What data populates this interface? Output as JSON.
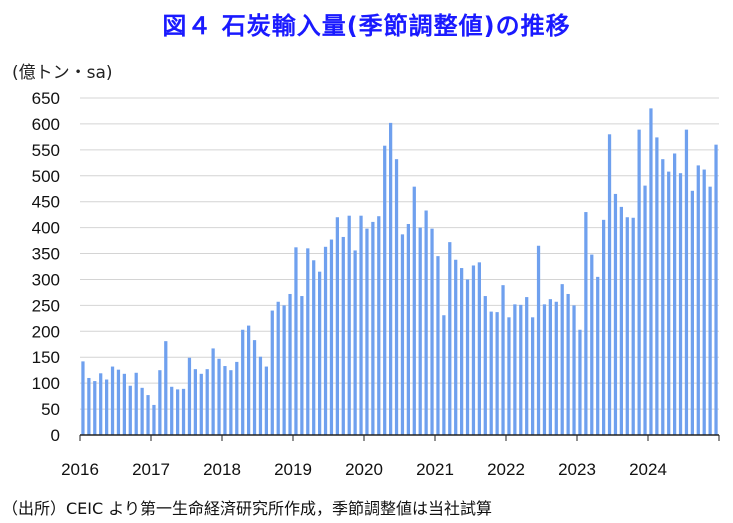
{
  "chart_data": {
    "type": "bar",
    "title": "図４ 石炭輸入量(季節調整値)の推移",
    "ylabel": "(億トン・sa)",
    "xlabel": "",
    "ylim": [
      0,
      650
    ],
    "yticks": [
      0,
      50,
      100,
      150,
      200,
      250,
      300,
      350,
      400,
      450,
      500,
      550,
      600,
      650
    ],
    "xticks": [
      "2016",
      "2017",
      "2018",
      "2019",
      "2020",
      "2021",
      "2022",
      "2023",
      "2024"
    ],
    "grid": "horizontal",
    "bar_color": "#6fa0ee",
    "start_year": 2016,
    "values": [
      142,
      110,
      104,
      119,
      107,
      132,
      126,
      118,
      95,
      120,
      91,
      77,
      58,
      125,
      181,
      93,
      88,
      89,
      149,
      127,
      118,
      127,
      167,
      147,
      133,
      125,
      141,
      203,
      211,
      183,
      151,
      132,
      240,
      257,
      250,
      272,
      362,
      268,
      360,
      337,
      315,
      363,
      377,
      420,
      382,
      423,
      356,
      423,
      398,
      411,
      422,
      558,
      602,
      532,
      387,
      407,
      479,
      400,
      433,
      398,
      345,
      231,
      372,
      338,
      322,
      300,
      327,
      333,
      268,
      238,
      237,
      289,
      227,
      252,
      251,
      266,
      227,
      365,
      252,
      262,
      257,
      291,
      272,
      250,
      203,
      430,
      348,
      305,
      415,
      580,
      465,
      440,
      420,
      419,
      589,
      481,
      630,
      574,
      532,
      508,
      543,
      505,
      589,
      471,
      520,
      512,
      479,
      560
    ]
  },
  "source_note": "（出所）CEIC より第一生命経済研究所作成，季節調整値は当社試算"
}
